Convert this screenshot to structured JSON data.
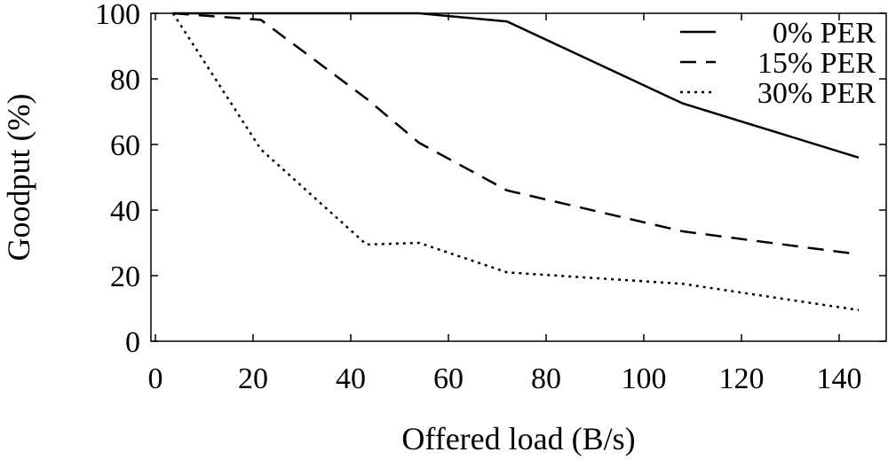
{
  "chart_data": {
    "type": "line",
    "title": "",
    "xlabel": "Offered load (B/s)",
    "ylabel": "Goodput (%)",
    "xlim": [
      0,
      150
    ],
    "ylim": [
      0,
      100
    ],
    "xticks": [
      0,
      20,
      40,
      60,
      80,
      100,
      120,
      140
    ],
    "yticks": [
      0,
      20,
      40,
      60,
      80,
      100
    ],
    "xtick_labels": [
      "0",
      "20",
      "40",
      "60",
      "80",
      "100",
      "120",
      "140"
    ],
    "ytick_labels": [
      "0",
      "20",
      "40",
      "60",
      "80",
      "100"
    ],
    "grid": false,
    "legend_position": "top-right",
    "series": [
      {
        "name": "0% PER",
        "style": "solid",
        "color": "#000000",
        "x": [
          3.6,
          21.6,
          43.2,
          54,
          72,
          108,
          144
        ],
        "y": [
          100,
          100,
          100,
          100,
          97.5,
          72.5,
          56
        ]
      },
      {
        "name": "15% PER",
        "style": "dashed",
        "color": "#000000",
        "x": [
          3.6,
          21.6,
          43.2,
          54,
          72,
          108,
          144
        ],
        "y": [
          100,
          98,
          74,
          60.5,
          46,
          33.5,
          26.5
        ]
      },
      {
        "name": "30% PER",
        "style": "dotted",
        "color": "#000000",
        "x": [
          3.6,
          21.6,
          43.2,
          54,
          72,
          108,
          144
        ],
        "y": [
          100,
          58.5,
          29.5,
          30,
          21,
          17.5,
          9.5
        ]
      }
    ]
  }
}
